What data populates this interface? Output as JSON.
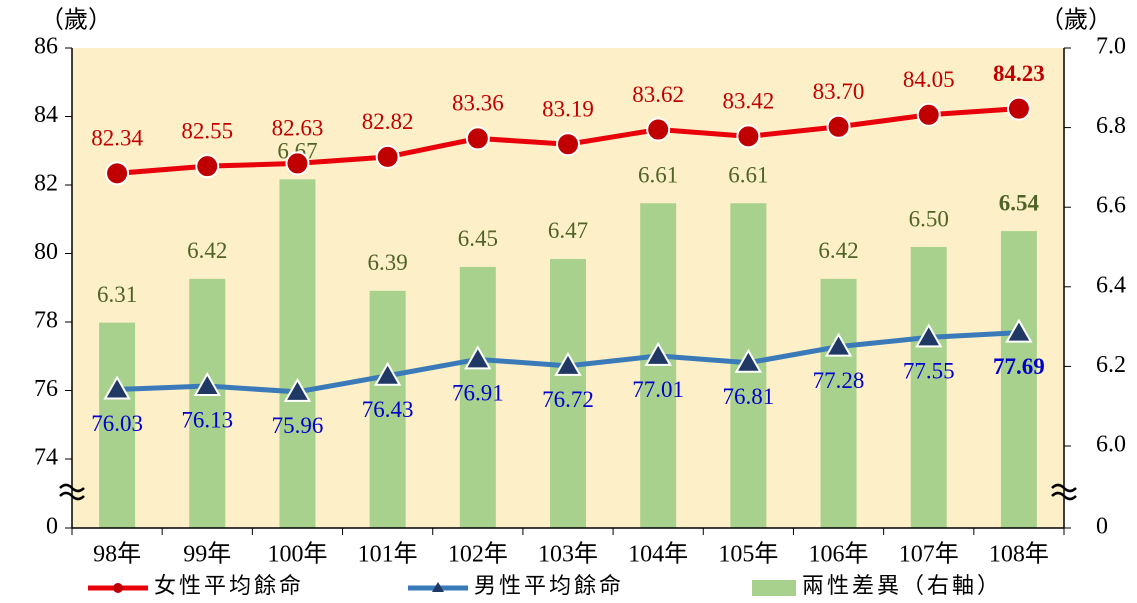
{
  "chart_data": {
    "type": "combo",
    "y_axis_label": "（歲）",
    "y2_axis_label": "（歲）",
    "categories": [
      "98年",
      "99年",
      "100年",
      "101年",
      "102年",
      "103年",
      "104年",
      "105年",
      "106年",
      "107年",
      "108年"
    ],
    "series": [
      {
        "name": "女性平均餘命",
        "type": "line",
        "color": "#e8000b",
        "marker_color": "#c00000",
        "label_color": "#c00000",
        "marker": "circle",
        "values": [
          82.34,
          82.55,
          82.63,
          82.82,
          83.36,
          83.19,
          83.62,
          83.42,
          83.7,
          84.05,
          84.23
        ],
        "value_labels": [
          "82.34",
          "82.55",
          "82.63",
          "82.82",
          "83.36",
          "83.19",
          "83.62",
          "83.42",
          "83.70",
          "84.05",
          "84.23"
        ]
      },
      {
        "name": "男性平均餘命",
        "type": "line",
        "color": "#3a7ab8",
        "marker_color": "#1f3864",
        "label_color": "#0000cc",
        "marker": "triangle",
        "values": [
          76.03,
          76.13,
          75.96,
          76.43,
          76.91,
          76.72,
          77.01,
          76.81,
          77.28,
          77.55,
          77.69
        ],
        "value_labels": [
          "76.03",
          "76.13",
          "75.96",
          "76.43",
          "76.91",
          "76.72",
          "77.01",
          "76.81",
          "77.28",
          "77.55",
          "77.69"
        ]
      },
      {
        "name": "兩性差異（右軸）",
        "type": "bar",
        "axis": "y2",
        "color": "#a9d18e",
        "label_color": "#4f6228",
        "values": [
          6.31,
          6.42,
          6.67,
          6.39,
          6.45,
          6.47,
          6.61,
          6.61,
          6.42,
          6.5,
          6.54
        ],
        "value_labels": [
          "6.31",
          "6.42",
          "6.67",
          "6.39",
          "6.45",
          "6.47",
          "6.61",
          "6.61",
          "6.42",
          "6.50",
          "6.54"
        ]
      }
    ],
    "ylim": [
      74,
      86
    ],
    "yticks": [
      0,
      74,
      76,
      78,
      80,
      82,
      84,
      86
    ],
    "y2lim": [
      6,
      7
    ],
    "y2ticks": [
      0,
      {
        "value": 6,
        "label": "6.0"
      },
      6.2,
      6.4,
      6.6,
      6.8,
      {
        "value": 7,
        "label": "7.0"
      }
    ],
    "axis_break": true,
    "background": "#fdf0c8"
  }
}
